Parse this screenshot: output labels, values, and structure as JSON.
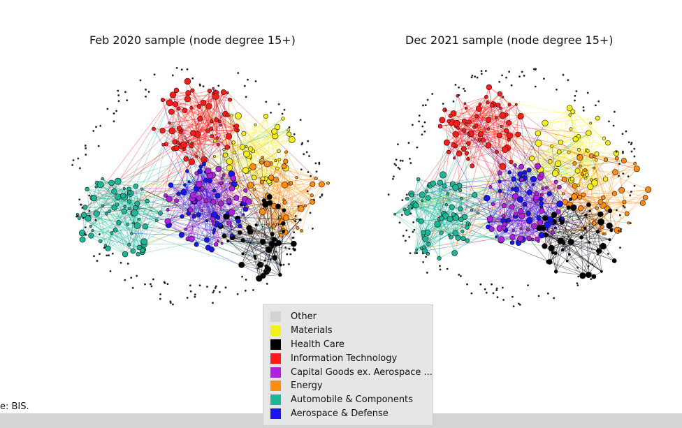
{
  "source_note": "e: BIS.",
  "chart_data": [
    {
      "type": "network",
      "title": "Feb 2020 sample (node degree 15+)",
      "clusters": [
        {
          "sector": "Information Technology",
          "position": "top"
        },
        {
          "sector": "Materials",
          "position": "top-right"
        },
        {
          "sector": "Energy",
          "position": "right"
        },
        {
          "sector": "Health Care",
          "position": "bottom-right"
        },
        {
          "sector": "Aerospace & Defense",
          "position": "center"
        },
        {
          "sector": "Capital Goods ex. Aerospace & Defense",
          "position": "center"
        },
        {
          "sector": "Automobile & Components",
          "position": "left"
        },
        {
          "sector": "Other",
          "position": "periphery"
        }
      ]
    },
    {
      "type": "network",
      "title": "Dec 2021 sample (node degree 15+)",
      "clusters": [
        {
          "sector": "Information Technology",
          "position": "top-left"
        },
        {
          "sector": "Materials",
          "position": "top-right"
        },
        {
          "sector": "Energy",
          "position": "right"
        },
        {
          "sector": "Health Care",
          "position": "bottom-right"
        },
        {
          "sector": "Aerospace & Defense",
          "position": "center"
        },
        {
          "sector": "Capital Goods ex. Aerospace & Defense",
          "position": "center"
        },
        {
          "sector": "Automobile & Components",
          "position": "left"
        },
        {
          "sector": "Other",
          "position": "periphery"
        }
      ]
    }
  ],
  "legend": {
    "placement": "bottom-center",
    "items": [
      {
        "label": "Other",
        "color": "#d3d3d3"
      },
      {
        "label": "Materials",
        "color": "#f5f019"
      },
      {
        "label": "Health Care",
        "color": "#000000"
      },
      {
        "label": "Information Technology",
        "color": "#ff1a1a"
      },
      {
        "label": "Capital Goods ex. Aerospace ...",
        "color": "#b020e0"
      },
      {
        "label": "Energy",
        "color": "#ff8c10"
      },
      {
        "label": "Automobile & Components",
        "color": "#1ab898"
      },
      {
        "label": "Aerospace & Defense",
        "color": "#1a14f0"
      }
    ]
  }
}
